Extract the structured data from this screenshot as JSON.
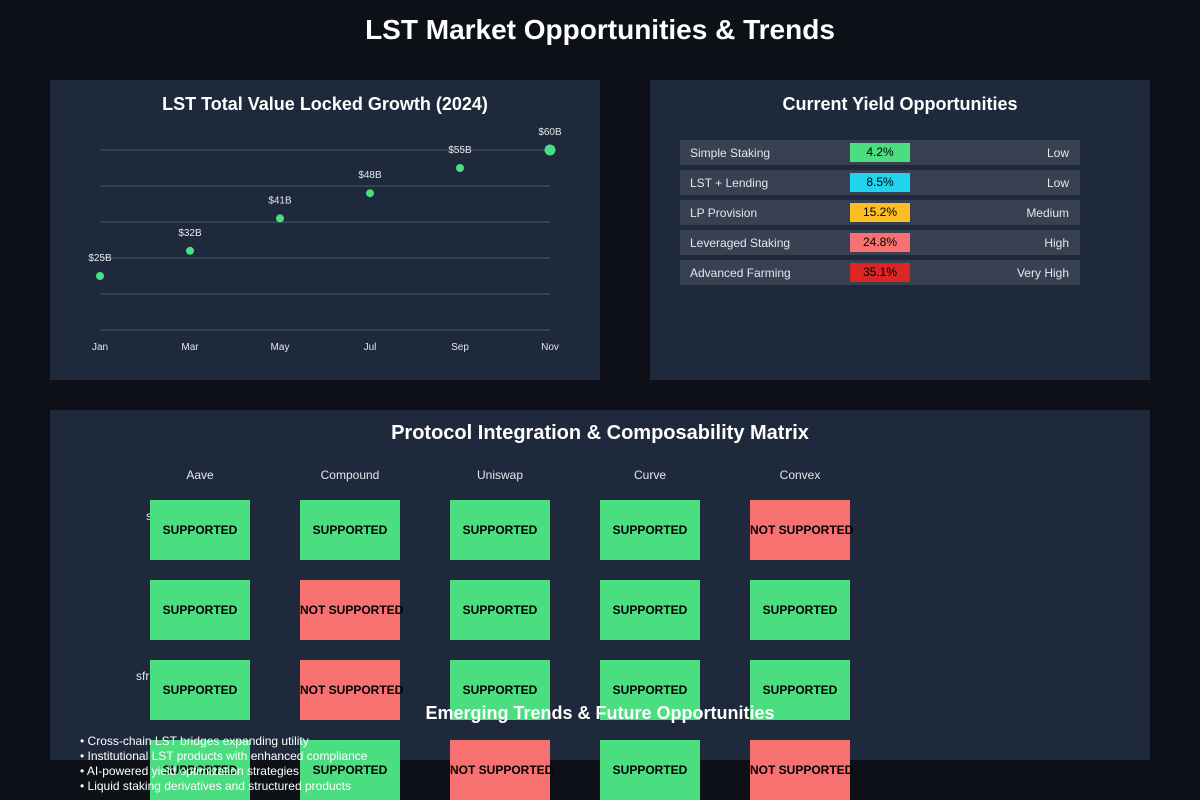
{
  "page": {
    "title": "LST Market Opportunities & Trends"
  },
  "tvl_panel": {
    "title": "LST Total Value Locked Growth (2024)"
  },
  "yield_panel": {
    "title": "Current Yield Opportunities",
    "rows": [
      {
        "name": "Simple Staking",
        "yield": "4.2%",
        "risk": "Low",
        "color": "#4ade80"
      },
      {
        "name": "LST + Lending",
        "yield": "8.5%",
        "risk": "Low",
        "color": "#22d3ee"
      },
      {
        "name": "LP Provision",
        "yield": "15.2%",
        "risk": "Medium",
        "color": "#fbbf24"
      },
      {
        "name": "Leveraged Staking",
        "yield": "24.8%",
        "risk": "High",
        "color": "#f87171"
      },
      {
        "name": "Advanced Farming",
        "yield": "35.1%",
        "risk": "Very High",
        "color": "#dc2626"
      }
    ]
  },
  "matrix": {
    "title": "Protocol Integration & Composability Matrix",
    "columns": [
      "Aave",
      "Compound",
      "Uniswap",
      "Curve",
      "Convex"
    ],
    "row_labels": [
      "s",
      "",
      "sfr",
      ""
    ],
    "supported_color": "#4ade80",
    "unsupported_color": "#f87171",
    "rows": [
      [
        "SUPPORTED",
        "SUPPORTED",
        "SUPPORTED",
        "SUPPORTED",
        "NOT SUPPORTED"
      ],
      [
        "SUPPORTED",
        "NOT SUPPORTED",
        "SUPPORTED",
        "SUPPORTED",
        "SUPPORTED"
      ],
      [
        "SUPPORTED",
        "NOT SUPPORTED",
        "SUPPORTED",
        "SUPPORTED",
        "SUPPORTED"
      ],
      [
        "SUPPORTED",
        "SUPPORTED",
        "NOT SUPPORTED",
        "SUPPORTED",
        "NOT SUPPORTED"
      ]
    ]
  },
  "trends": {
    "title": "Emerging Trends & Future Opportunities",
    "items": [
      "• Cross-chain LST bridges expanding utility",
      "• Institutional LST products with enhanced compliance",
      "• AI-powered yield optimization strategies",
      "• Liquid staking derivatives and structured products"
    ]
  },
  "chart_data": {
    "type": "scatter",
    "title": "LST Total Value Locked Growth (2024)",
    "categories": [
      "Jan",
      "Mar",
      "May",
      "Jul",
      "Sep",
      "Nov"
    ],
    "values": [
      25,
      32,
      41,
      48,
      55,
      60
    ],
    "data_labels": [
      "$25B",
      "$32B",
      "$41B",
      "$48B",
      "$55B",
      "$60B"
    ],
    "ylim": [
      10,
      60
    ],
    "grid": true,
    "point_color": "#4ade80",
    "highlight_last": true
  }
}
